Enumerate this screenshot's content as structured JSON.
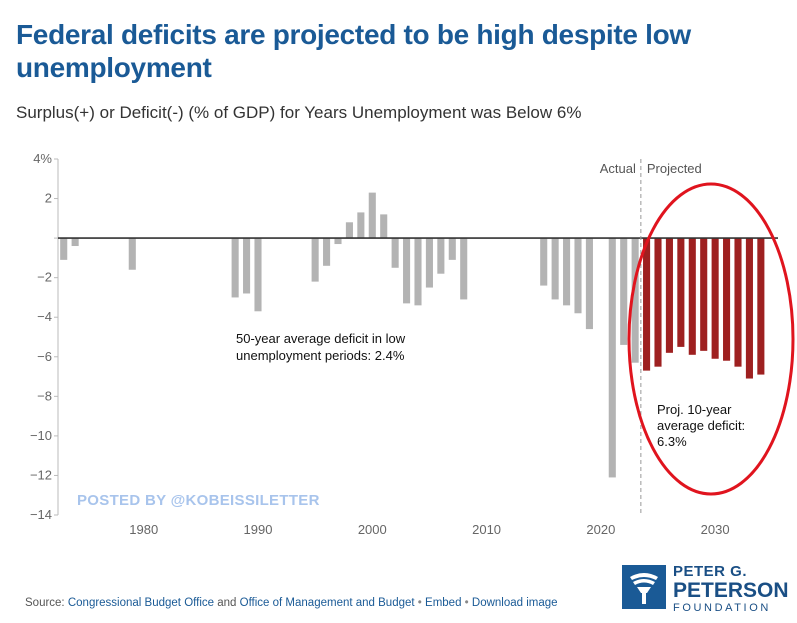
{
  "title": "Federal deficits are projected to be high despite low unemployment",
  "subtitle": "Surplus(+) or Deficit(-) (% of GDP) for Years Unemployment was Below 6%",
  "watermark": "POSTED BY @KOBEISSILETTER",
  "footer": {
    "source_prefix": "Source:",
    "cbo": "Congressional Budget Office",
    "and": "and",
    "omb": "Office of Management and Budget",
    "bullet": "•",
    "embed": "Embed",
    "download": "Download image"
  },
  "logo": {
    "line1": "PETER G.",
    "line2": "PETERSON",
    "line3": "FOUNDATION"
  },
  "colors": {
    "title": "#1a5a96",
    "actual_bar": "#b3b3b3",
    "projected_bar": "#9e2020",
    "ellipse": "#e0141e",
    "watermark": "#a8c4ec"
  },
  "chart_data": {
    "type": "bar",
    "title": "Surplus(+) or Deficit(-) (% of GDP) for Years Unemployment was Below 6%",
    "xlabel": "",
    "ylabel": "% of GDP",
    "ylim": [
      -14,
      4
    ],
    "xlim": [
      1972.5,
      2035.5
    ],
    "y_ticks": [
      4,
      2,
      0,
      -2,
      -4,
      -6,
      -8,
      -10,
      -12,
      -14
    ],
    "y_tick_labels": [
      "4%",
      "2",
      "",
      "−2",
      "−4",
      "−6",
      "−8",
      "−10",
      "−12",
      "−14"
    ],
    "x_ticks": [
      1980,
      1990,
      2000,
      2010,
      2020,
      2030
    ],
    "x_tick_labels": [
      "1980",
      "1990",
      "2000",
      "2010",
      "2020",
      "2030"
    ],
    "divider_year": 2023.5,
    "region_labels": {
      "actual": "Actual",
      "projected": "Projected"
    },
    "annotations": {
      "average_low_unemployment": "50-year average deficit in low unemployment periods: 2.4%",
      "projected_average": "Proj. 10-year average deficit: 6.3%"
    },
    "series": [
      {
        "name": "Actual",
        "points": [
          {
            "year": 1973,
            "value": -1.1
          },
          {
            "year": 1974,
            "value": -0.4
          },
          {
            "year": 1979,
            "value": -1.6
          },
          {
            "year": 1988,
            "value": -3.0
          },
          {
            "year": 1989,
            "value": -2.8
          },
          {
            "year": 1990,
            "value": -3.7
          },
          {
            "year": 1995,
            "value": -2.2
          },
          {
            "year": 1996,
            "value": -1.4
          },
          {
            "year": 1997,
            "value": -0.3
          },
          {
            "year": 1998,
            "value": 0.8
          },
          {
            "year": 1999,
            "value": 1.3
          },
          {
            "year": 2000,
            "value": 2.3
          },
          {
            "year": 2001,
            "value": 1.2
          },
          {
            "year": 2002,
            "value": -1.5
          },
          {
            "year": 2003,
            "value": -3.3
          },
          {
            "year": 2004,
            "value": -3.4
          },
          {
            "year": 2005,
            "value": -2.5
          },
          {
            "year": 2006,
            "value": -1.8
          },
          {
            "year": 2007,
            "value": -1.1
          },
          {
            "year": 2008,
            "value": -3.1
          },
          {
            "year": 2015,
            "value": -2.4
          },
          {
            "year": 2016,
            "value": -3.1
          },
          {
            "year": 2017,
            "value": -3.4
          },
          {
            "year": 2018,
            "value": -3.8
          },
          {
            "year": 2019,
            "value": -4.6
          },
          {
            "year": 2021,
            "value": -12.1
          },
          {
            "year": 2022,
            "value": -5.4
          },
          {
            "year": 2023,
            "value": -6.3
          }
        ]
      },
      {
        "name": "Projected",
        "points": [
          {
            "year": 2024,
            "value": -6.7
          },
          {
            "year": 2025,
            "value": -6.5
          },
          {
            "year": 2026,
            "value": -5.8
          },
          {
            "year": 2027,
            "value": -5.5
          },
          {
            "year": 2028,
            "value": -5.9
          },
          {
            "year": 2029,
            "value": -5.7
          },
          {
            "year": 2030,
            "value": -6.1
          },
          {
            "year": 2031,
            "value": -6.2
          },
          {
            "year": 2032,
            "value": -6.5
          },
          {
            "year": 2033,
            "value": -7.1
          },
          {
            "year": 2034,
            "value": -6.9
          }
        ]
      }
    ]
  }
}
